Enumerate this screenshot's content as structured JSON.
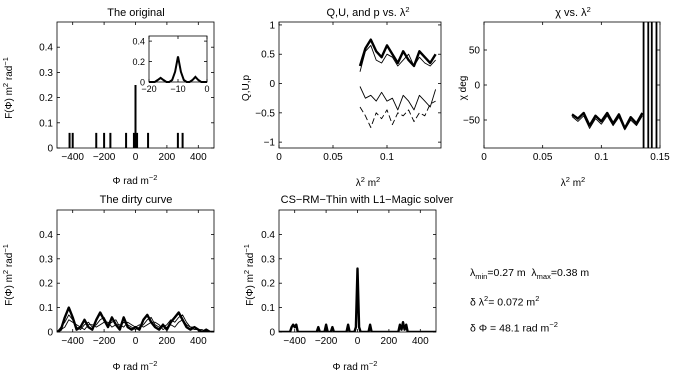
{
  "panels": {
    "original": {
      "title": "The original",
      "xlabel": "Φ rad m",
      "xlabel_exp": "−2",
      "ylabel": "F(Φ) m",
      "ylabel_exp1": "2",
      "ylabel_mid": " rad",
      "ylabel_exp2": "−1"
    },
    "qup": {
      "title": "Q,U, and p vs. λ",
      "title_exp": "2",
      "xlabel": "λ",
      "xlabel_exp": "2",
      "xlabel_unit": " m",
      "xlabel_unit_exp": "2",
      "ylabel": "Q,U,p"
    },
    "chi": {
      "title": "χ vs. λ",
      "title_exp": "2",
      "xlabel": "λ",
      "xlabel_exp": "2",
      "xlabel_unit": " m",
      "xlabel_unit_exp": "2",
      "ylabel": "χ deg"
    },
    "dirty": {
      "title": "The dirty curve",
      "xlabel": "Φ rad m",
      "xlabel_exp": "−2",
      "ylabel": "F(Φ) m",
      "ylabel_exp1": "2",
      "ylabel_mid": " rad",
      "ylabel_exp2": "−1"
    },
    "cs": {
      "title": "CS−RM−Thin with L1−Magic solver",
      "xlabel": "Φ rad m",
      "xlabel_exp": "−2",
      "ylabel": "F(Φ) m",
      "ylabel_exp1": "2",
      "ylabel_mid": " rad",
      "ylabel_exp2": "−1"
    }
  },
  "params": {
    "lambda_min_sym": "λ",
    "lambda_min_sub": "min",
    "lambda_min_val": "=0.27 m",
    "lambda_max_sym": "λ",
    "lambda_max_sub": "max",
    "lambda_max_val": "=0.38 m",
    "dl2_prefix": "δ λ",
    "dl2_exp": "2",
    "dl2_val": "= 0.072 m",
    "dl2_unit_exp": "2",
    "dphi_text": "δ Φ = 48.1 rad m",
    "dphi_exp": "−2"
  },
  "chart_data": [
    {
      "id": "original",
      "type": "line",
      "title": "The original",
      "xlim": [
        -500,
        500
      ],
      "ylim": [
        0,
        0.5
      ],
      "xticks": [
        -400,
        -200,
        0,
        200,
        400
      ],
      "yticks": [
        0,
        0.1,
        0.2,
        0.3,
        0.4
      ],
      "spikes": [
        {
          "x": -420,
          "y": 0.06
        },
        {
          "x": -400,
          "y": 0.06
        },
        {
          "x": -250,
          "y": 0.06
        },
        {
          "x": -200,
          "y": 0.06
        },
        {
          "x": -160,
          "y": 0.06
        },
        {
          "x": -60,
          "y": 0.06
        },
        {
          "x": -10,
          "y": 0.06
        },
        {
          "x": 0,
          "y": 0.25
        },
        {
          "x": 10,
          "y": 0.06
        },
        {
          "x": 80,
          "y": 0.06
        },
        {
          "x": 270,
          "y": 0.06
        },
        {
          "x": 300,
          "y": 0.06
        }
      ],
      "inset": {
        "xlim": [
          -20,
          0
        ],
        "ylim": [
          0,
          0.45
        ],
        "xticks": [
          -20,
          -10,
          0
        ],
        "yticks": [
          0,
          0.2,
          0.4
        ],
        "x": [
          -20,
          -19,
          -18,
          -17,
          -16,
          -15,
          -14,
          -13,
          -12,
          -11,
          -10,
          -9,
          -8,
          -7,
          -6,
          -5,
          -4,
          -3,
          -2,
          -1,
          0
        ],
        "y": [
          0.0,
          0.0,
          0.0,
          0.02,
          0.04,
          0.02,
          0.0,
          0.0,
          0.02,
          0.1,
          0.25,
          0.1,
          0.02,
          0.0,
          0.0,
          0.02,
          0.05,
          0.02,
          0.0,
          0.0,
          0.0
        ]
      }
    },
    {
      "id": "qup",
      "type": "line",
      "title": "Q,U, and p vs. λ2",
      "xlim": [
        0,
        0.15
      ],
      "ylim": [
        -1.1,
        1.05
      ],
      "xticks": [
        0,
        0.05,
        0.1
      ],
      "yticks": [
        -1,
        -0.5,
        0,
        0.5,
        1
      ],
      "x": [
        0.075,
        0.08,
        0.085,
        0.09,
        0.095,
        0.1,
        0.105,
        0.11,
        0.115,
        0.12,
        0.125,
        0.13,
        0.135,
        0.14,
        0.145
      ],
      "series": [
        {
          "style": "thick",
          "values": [
            0.3,
            0.6,
            0.75,
            0.55,
            0.45,
            0.65,
            0.5,
            0.35,
            0.55,
            0.4,
            0.3,
            0.55,
            0.45,
            0.35,
            0.5
          ]
        },
        {
          "style": "thin",
          "values": [
            0.2,
            0.55,
            0.65,
            0.4,
            0.35,
            0.5,
            0.45,
            0.3,
            0.4,
            0.5,
            0.3,
            0.45,
            0.35,
            0.3,
            0.4
          ]
        },
        {
          "style": "thin",
          "values": [
            -0.05,
            -0.25,
            -0.2,
            -0.3,
            -0.15,
            -0.3,
            -0.25,
            -0.45,
            -0.2,
            -0.3,
            -0.45,
            -0.2,
            -0.3,
            -0.4,
            -0.1
          ]
        },
        {
          "style": "dashed",
          "values": [
            -0.4,
            -0.55,
            -0.75,
            -0.5,
            -0.6,
            -0.45,
            -0.7,
            -0.5,
            -0.55,
            -0.45,
            -0.65,
            -0.5,
            -0.55,
            -0.35,
            -0.3
          ]
        }
      ]
    },
    {
      "id": "chi",
      "type": "line",
      "title": "χ vs. λ2",
      "xlim": [
        0,
        0.15
      ],
      "ylim": [
        -90,
        90
      ],
      "xticks": [
        0,
        0.05,
        0.1,
        0.15
      ],
      "yticks": [
        -50,
        0,
        50
      ],
      "x": [
        0.075,
        0.08,
        0.085,
        0.09,
        0.095,
        0.1,
        0.105,
        0.11,
        0.115,
        0.12,
        0.125,
        0.13,
        0.135
      ],
      "series": [
        {
          "style": "thick",
          "values": [
            -42,
            -48,
            -40,
            -58,
            -44,
            -52,
            -40,
            -55,
            -42,
            -62,
            -46,
            -55,
            -40
          ]
        },
        {
          "style": "thin",
          "values": [
            -45,
            -52,
            -44,
            -62,
            -48,
            -56,
            -44,
            -58,
            -46,
            -64,
            -50,
            -58,
            -44
          ]
        }
      ],
      "wrap_x": [
        0.136,
        0.14,
        0.143,
        0.147
      ]
    },
    {
      "id": "dirty",
      "type": "line",
      "title": "The dirty curve",
      "xlim": [
        -500,
        500
      ],
      "ylim": [
        0,
        0.5
      ],
      "xticks": [
        -400,
        -200,
        0,
        200,
        400
      ],
      "yticks": [
        0,
        0.1,
        0.2,
        0.3,
        0.4
      ],
      "x": [
        -500,
        -475,
        -450,
        -425,
        -400,
        -375,
        -350,
        -325,
        -300,
        -275,
        -250,
        -225,
        -200,
        -175,
        -150,
        -125,
        -100,
        -75,
        -50,
        -25,
        0,
        25,
        50,
        75,
        100,
        125,
        150,
        175,
        200,
        225,
        250,
        275,
        300,
        325,
        350,
        375,
        400,
        425,
        450,
        475,
        500
      ],
      "series": [
        {
          "style": "thick",
          "values": [
            0.0,
            0.01,
            0.06,
            0.1,
            0.06,
            0.01,
            0.02,
            0.05,
            0.02,
            0.01,
            0.05,
            0.08,
            0.05,
            0.02,
            0.06,
            0.03,
            0.01,
            0.06,
            0.02,
            0.01,
            0.02,
            0.01,
            0.05,
            0.07,
            0.04,
            0.02,
            0.01,
            0.03,
            0.01,
            0.04,
            0.06,
            0.08,
            0.05,
            0.02,
            0.01,
            0.02,
            0.01,
            0.0,
            0.01,
            0.0,
            0.0
          ]
        },
        {
          "style": "thin",
          "values": [
            0.0,
            0.02,
            0.04,
            0.07,
            0.05,
            0.02,
            0.01,
            0.03,
            0.04,
            0.02,
            0.03,
            0.05,
            0.06,
            0.03,
            0.04,
            0.05,
            0.02,
            0.04,
            0.03,
            0.02,
            0.01,
            0.02,
            0.03,
            0.05,
            0.06,
            0.03,
            0.02,
            0.02,
            0.03,
            0.05,
            0.04,
            0.06,
            0.07,
            0.04,
            0.02,
            0.01,
            0.01,
            0.01,
            0.0,
            0.0,
            0.0
          ]
        },
        {
          "style": "thin",
          "values": [
            0.0,
            0.01,
            0.02,
            0.05,
            0.04,
            0.03,
            0.02,
            0.01,
            0.03,
            0.03,
            0.02,
            0.03,
            0.04,
            0.04,
            0.02,
            0.03,
            0.03,
            0.02,
            0.04,
            0.03,
            0.02,
            0.03,
            0.02,
            0.03,
            0.04,
            0.04,
            0.03,
            0.01,
            0.02,
            0.03,
            0.02,
            0.04,
            0.05,
            0.03,
            0.02,
            0.02,
            0.01,
            0.0,
            0.0,
            0.0,
            0.0
          ]
        }
      ]
    },
    {
      "id": "cs",
      "type": "line",
      "title": "CS−RM−Thin with L1−Magic solver",
      "xlim": [
        -500,
        500
      ],
      "ylim": [
        0,
        0.5
      ],
      "xticks": [
        -400,
        -200,
        0,
        200,
        400
      ],
      "yticks": [
        0,
        0.1,
        0.2,
        0.3,
        0.4
      ],
      "x": [
        -500,
        -450,
        -430,
        -420,
        -410,
        -400,
        -390,
        -380,
        -300,
        -260,
        -250,
        -240,
        -210,
        -200,
        -190,
        -170,
        -160,
        -150,
        -70,
        -60,
        -50,
        -20,
        -10,
        0,
        10,
        20,
        70,
        80,
        90,
        260,
        270,
        280,
        290,
        300,
        310,
        320,
        500
      ],
      "series": [
        {
          "style": "thick",
          "values": [
            0.0,
            0.0,
            0.0,
            0.02,
            0.03,
            0.02,
            0.03,
            0.0,
            0.0,
            0.0,
            0.02,
            0.0,
            0.0,
            0.03,
            0.0,
            0.0,
            0.02,
            0.0,
            0.0,
            0.03,
            0.0,
            0.0,
            0.02,
            0.26,
            0.02,
            0.0,
            0.0,
            0.03,
            0.0,
            0.0,
            0.03,
            0.01,
            0.04,
            0.01,
            0.03,
            0.0,
            0.0
          ]
        }
      ]
    }
  ]
}
